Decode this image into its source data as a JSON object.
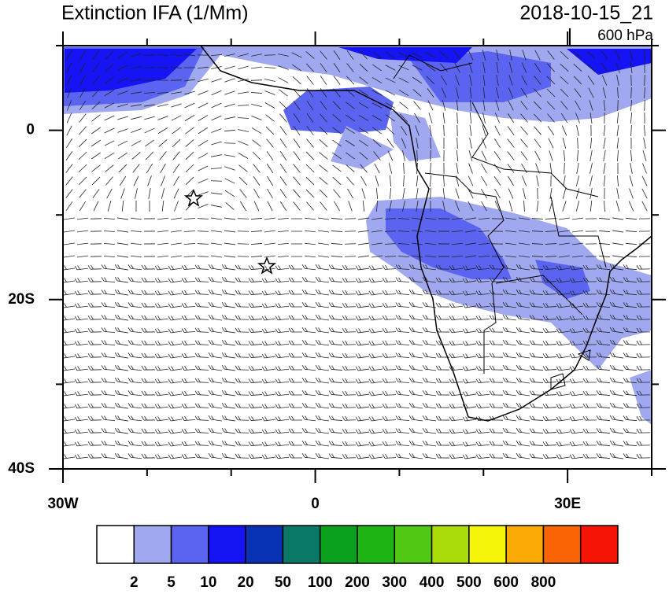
{
  "header": {
    "title": "Extinction IFA (1/Mm)",
    "date": "2018-10-15_21",
    "level": "600 hPa"
  },
  "map": {
    "lonlim": [
      -30,
      40
    ],
    "latlim": [
      -40,
      10
    ],
    "xticks": [
      {
        "value": -30,
        "label": "30W"
      },
      0,
      {
        "value": 30,
        "label": "30E"
      }
    ],
    "minor_xticks": [
      -20,
      -10,
      10,
      20,
      40
    ],
    "yticks": [
      0,
      {
        "value": -20,
        "label": "20S"
      },
      {
        "value": -40,
        "label": "40S"
      }
    ],
    "minor_yticks": [
      -10,
      -30,
      10
    ]
  },
  "colorbar": {
    "colors": [
      "#ffffff",
      "#a0a8f0",
      "#5a64f0",
      "#1414f5",
      "#0a32b4",
      "#0a7864",
      "#0aa01e",
      "#1eb414",
      "#50c814",
      "#aadc0a",
      "#f5f50a",
      "#faaa05",
      "#fa6405",
      "#f51405"
    ],
    "levels": [
      2,
      5,
      10,
      20,
      50,
      100,
      200,
      300,
      400,
      500,
      600,
      800
    ]
  }
}
